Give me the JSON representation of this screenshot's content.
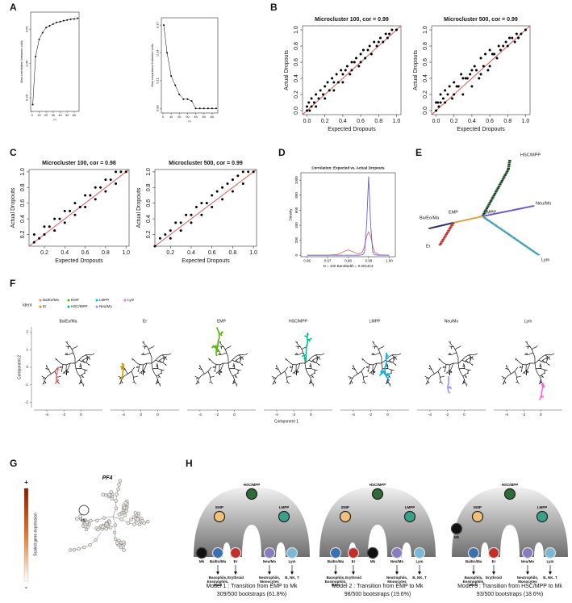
{
  "panel_labels": [
    "A",
    "B",
    "C",
    "D",
    "E",
    "F",
    "G",
    "H"
  ],
  "chart_data": [
    {
      "type": "line",
      "xlabel": "m",
      "ylabel": "Max correlation between cells",
      "color": "#000000",
      "markers": true,
      "x": [
        1,
        5,
        10,
        15,
        20,
        25,
        30,
        35,
        40,
        45,
        50,
        55,
        60,
        65
      ],
      "values": [
        0.33,
        0.47,
        0.52,
        0.54,
        0.555,
        0.56,
        0.565,
        0.57,
        0.572,
        0.575,
        0.577,
        0.579,
        0.58,
        0.582
      ],
      "xlim": [
        -2,
        67
      ],
      "xticks": [
        0,
        10,
        20,
        30,
        40,
        50,
        60
      ],
      "ylim": [
        0.31,
        0.6
      ],
      "yticks": [
        0.35,
        0.45,
        0.55
      ]
    },
    {
      "type": "line",
      "xlabel": "m",
      "ylabel": "Max covariance between cells",
      "color": "#000000",
      "markers": true,
      "x": [
        1,
        5,
        10,
        15,
        20,
        25,
        30,
        35,
        40,
        45,
        50,
        55,
        60,
        65
      ],
      "values": [
        0.17,
        0.14,
        0.115,
        0.105,
        0.095,
        0.09,
        0.09,
        0.088,
        0.08,
        0.08,
        0.08,
        0.08,
        0.08,
        0.08
      ],
      "xlim": [
        -2,
        67
      ],
      "xticks": [
        0,
        10,
        20,
        30,
        40,
        50,
        60
      ],
      "ylim": [
        0.075,
        0.178
      ],
      "yticks": [
        0.08,
        0.11,
        0.14,
        0.17
      ]
    },
    {
      "type": "scatter",
      "title": "Microcluster 100, cor = 0.99",
      "xlabel": "Expected Dropouts",
      "ylabel": "Actual Dropouts",
      "color": "#000000",
      "reference_line": "#e05555",
      "x": [
        0,
        0,
        0.02,
        0.03,
        0.05,
        0.05,
        0.08,
        0.1,
        0.1,
        0.13,
        0.15,
        0.18,
        0.2,
        0.2,
        0.23,
        0.25,
        0.28,
        0.3,
        0.3,
        0.33,
        0.35,
        0.38,
        0.4,
        0.4,
        0.43,
        0.45,
        0.48,
        0.5,
        0.5,
        0.53,
        0.55,
        0.58,
        0.6,
        0.6,
        0.63,
        0.65,
        0.68,
        0.7,
        0.72,
        0.75,
        0.78,
        0.8,
        0.82,
        0.85,
        0.88,
        0.9,
        0.92,
        0.95,
        1.0
      ],
      "values": [
        0,
        0.05,
        0.1,
        0,
        0.15,
        0.05,
        0.1,
        0.2,
        0.05,
        0.15,
        0.25,
        0.2,
        0.3,
        0.15,
        0.35,
        0.25,
        0.4,
        0.35,
        0.25,
        0.45,
        0.35,
        0.5,
        0.45,
        0.35,
        0.5,
        0.55,
        0.45,
        0.6,
        0.5,
        0.6,
        0.65,
        0.55,
        0.7,
        0.6,
        0.75,
        0.65,
        0.75,
        0.8,
        0.7,
        0.85,
        0.8,
        0.85,
        0.9,
        0.85,
        0.95,
        0.9,
        0.95,
        1.0,
        1.0
      ],
      "xlim": [
        -0.05,
        1.05
      ],
      "ylim": [
        -0.05,
        1.05
      ],
      "xticks": [
        {
          "value": 0,
          "label": "0.0"
        },
        0.2,
        0.4,
        0.6,
        0.8,
        {
          "value": 1,
          "label": "1.0"
        }
      ],
      "yticks": [
        {
          "value": 0,
          "label": "0.0"
        },
        0.2,
        0.4,
        0.6,
        0.8,
        {
          "value": 1,
          "label": "1.0"
        }
      ]
    },
    {
      "type": "scatter",
      "title": "Microcluster 500, cor = 0.99",
      "xlabel": "Expected Dropouts",
      "ylabel": "Actual Dropouts",
      "color": "#000000",
      "reference_line": "#e05555",
      "x": [
        0,
        0,
        0.02,
        0.03,
        0.05,
        0.05,
        0.08,
        0.1,
        0.1,
        0.13,
        0.15,
        0.18,
        0.2,
        0.2,
        0.23,
        0.25,
        0.28,
        0.3,
        0.3,
        0.33,
        0.35,
        0.38,
        0.4,
        0.4,
        0.43,
        0.45,
        0.48,
        0.5,
        0.5,
        0.53,
        0.55,
        0.58,
        0.6,
        0.6,
        0.63,
        0.65,
        0.68,
        0.7,
        0.72,
        0.75,
        0.78,
        0.8,
        0.82,
        0.85,
        0.88,
        0.9,
        0.92,
        0.95,
        1.0
      ],
      "values": [
        0,
        0.1,
        0.1,
        0.05,
        0.2,
        0.1,
        0.15,
        0.25,
        0.1,
        0.2,
        0.3,
        0.15,
        0.35,
        0.2,
        0.3,
        0.3,
        0.45,
        0.4,
        0.2,
        0.4,
        0.4,
        0.45,
        0.5,
        0.3,
        0.55,
        0.5,
        0.4,
        0.65,
        0.45,
        0.55,
        0.7,
        0.5,
        0.75,
        0.55,
        0.7,
        0.7,
        0.65,
        0.8,
        0.75,
        0.8,
        0.85,
        0.8,
        0.9,
        0.9,
        0.85,
        0.95,
        0.9,
        0.95,
        1.0
      ],
      "xlim": [
        -0.05,
        1.05
      ],
      "ylim": [
        -0.05,
        1.05
      ],
      "xticks": [
        {
          "value": 0,
          "label": "0.0"
        },
        0.2,
        0.4,
        0.6,
        0.8,
        {
          "value": 1,
          "label": "1.0"
        }
      ],
      "yticks": [
        {
          "value": 0,
          "label": "0.0"
        },
        0.2,
        0.4,
        0.6,
        0.8,
        {
          "value": 1,
          "label": "1.0"
        }
      ]
    },
    {
      "type": "scatter",
      "title": "Microcluster 100, cor = 0.98",
      "xlabel": "Expected Dropouts",
      "ylabel": "Actual Dropouts",
      "color": "#000000",
      "reference_line": "#e05555",
      "x": [
        0.1,
        0.1,
        0.15,
        0.2,
        0.2,
        0.25,
        0.3,
        0.3,
        0.35,
        0.4,
        0.4,
        0.45,
        0.5,
        0.5,
        0.55,
        0.6,
        0.6,
        0.65,
        0.7,
        0.7,
        0.75,
        0.8,
        0.8,
        0.85,
        0.9,
        0.9,
        0.95,
        1.0
      ],
      "values": [
        0.1,
        0.2,
        0.15,
        0.3,
        0.2,
        0.3,
        0.4,
        0.25,
        0.4,
        0.5,
        0.35,
        0.5,
        0.6,
        0.45,
        0.55,
        0.7,
        0.55,
        0.7,
        0.8,
        0.65,
        0.8,
        0.9,
        0.75,
        0.9,
        1.0,
        0.85,
        1.0,
        1.0
      ],
      "xlim": [
        0.05,
        1.03
      ],
      "ylim": [
        0.05,
        1.03
      ],
      "xticks": [
        0.2,
        0.4,
        0.6,
        0.8,
        {
          "value": 1,
          "label": "1.0"
        }
      ],
      "yticks": [
        0.2,
        0.4,
        0.6,
        0.8,
        {
          "value": 1,
          "label": "1.0"
        }
      ]
    },
    {
      "type": "scatter",
      "title": "Microcluster 500, cor = 0.99",
      "xlabel": "Expected Dropouts",
      "ylabel": "Actual Dropouts",
      "color": "#000000",
      "reference_line": "#e05555",
      "x": [
        0.05,
        0.1,
        0.15,
        0.2,
        0.2,
        0.25,
        0.3,
        0.3,
        0.35,
        0.4,
        0.4,
        0.45,
        0.5,
        0.5,
        0.55,
        0.6,
        0.6,
        0.65,
        0.7,
        0.7,
        0.75,
        0.8,
        0.8,
        0.85,
        0.9,
        0.9,
        0.95,
        1.0
      ],
      "values": [
        0.05,
        0.15,
        0.2,
        0.25,
        0.15,
        0.35,
        0.35,
        0.25,
        0.45,
        0.45,
        0.35,
        0.55,
        0.6,
        0.45,
        0.6,
        0.7,
        0.55,
        0.75,
        0.8,
        0.65,
        0.85,
        0.9,
        0.75,
        0.95,
        1.0,
        0.85,
        1.0,
        1.0
      ],
      "xlim": [
        0.05,
        1.03
      ],
      "ylim": [
        0.05,
        1.03
      ],
      "xticks": [
        0.2,
        0.4,
        0.6,
        0.8,
        {
          "value": 1,
          "label": "1.0"
        }
      ],
      "yticks": [
        0.2,
        0.4,
        0.6,
        0.8,
        {
          "value": 1,
          "label": "1.0"
        }
      ]
    },
    {
      "type": "line",
      "title": "Correlation: Expected vs. Actual Dropouts",
      "xlabel": "N = 100   Bandwidth = 0.001413",
      "ylabel": "Density",
      "x": [
        0.96,
        0.965,
        0.97,
        0.975,
        0.978,
        0.98,
        0.982,
        0.985,
        0.987,
        0.988,
        0.989,
        0.99,
        0.991,
        0.992,
        0.993,
        0.995,
        1.0
      ],
      "series": [
        {
          "color": "#e06a6a",
          "values": [
            0,
            0,
            0,
            10,
            50,
            70,
            50,
            15,
            40,
            120,
            250,
            310,
            250,
            120,
            40,
            5,
            0
          ]
        },
        {
          "color": "#6464c8",
          "values": [
            0,
            0,
            0,
            0,
            0,
            0,
            0,
            0,
            5,
            40,
            400,
            1050,
            400,
            40,
            5,
            0,
            0
          ]
        }
      ],
      "xlim": [
        0.957,
        1.003
      ],
      "ylim": [
        -20,
        1100
      ],
      "xticks": [
        0.96,
        0.97,
        0.98,
        0.99,
        {
          "value": 1,
          "label": "1.00"
        }
      ],
      "yticks": [
        0,
        200,
        400,
        600,
        800,
        1000
      ]
    }
  ],
  "panel_e": {
    "labels": [
      "HSC/MPP",
      "EMP",
      "LMPP",
      "Ba/Eo/Ma",
      "Neu/Mo",
      "Er",
      "Lym"
    ]
  },
  "panel_f": {
    "legend_title": "Ident",
    "legend": [
      "Ba/Eo/Ma",
      "Er",
      "EMP",
      "HSC/MPP",
      "LMPP",
      "Neu/Mo",
      "Lym"
    ],
    "colors": [
      "#f8766d",
      "#c49a00",
      "#53b400",
      "#00c094",
      "#00b6eb",
      "#a58aff",
      "#fb61d7"
    ],
    "xlabel": "Component 1",
    "ylabel": "Component 2",
    "xticks": [
      -4,
      -2,
      0
    ],
    "yticks": [
      2,
      1,
      0,
      -1,
      -2
    ]
  },
  "panel_g": {
    "title": "PF4",
    "colorbar_label": "Scaled gene expression",
    "high": "+",
    "low": "-",
    "annotation": "Mk"
  },
  "panel_h": {
    "nodes": [
      "HSC/MPP",
      "EMP",
      "LMPP"
    ],
    "leaves": [
      "Mk",
      "Ba/Eo/Ma",
      "Er",
      "Neu/Mo",
      "Lym"
    ],
    "outcomes": [
      "Basophils, Eosinophils, Mast",
      "Erythroid",
      "Neutrophils, Monocytes",
      "B, NK, T"
    ],
    "models": [
      {
        "title": "Model 1 : Transition from EMP to Mk",
        "bootstraps": "309/500 bootstraps (61.8%)"
      },
      {
        "title": "Model 2 : Transition from EMP to Mk",
        "bootstraps": "98/500 bootstraps (19.6%)"
      },
      {
        "title": "Model 3 : Transition from HSC/MPP to Mk",
        "bootstraps": "93/500 bootstraps (18.6%)"
      }
    ]
  }
}
